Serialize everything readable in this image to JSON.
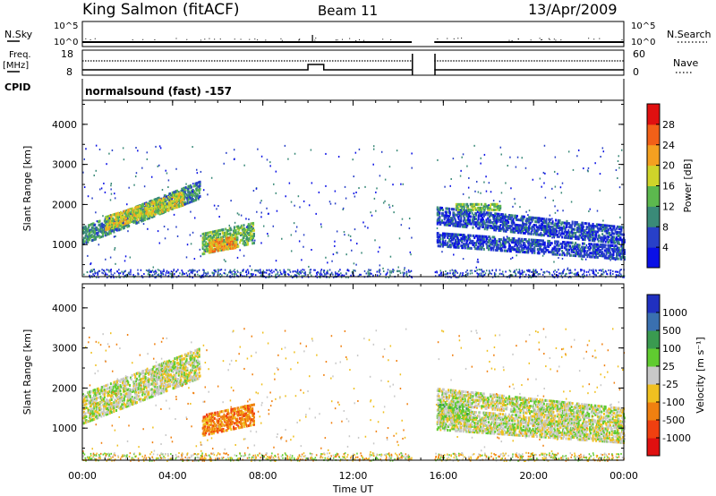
{
  "header": {
    "station": "King Salmon (fitACF)",
    "beam": "Beam 11",
    "date": "13/Apr/2009"
  },
  "top_panels": {
    "nsky_label": "N.Sky",
    "nsearch_label": "N.Search",
    "freq_label_1": "Freq.",
    "freq_label_2": "[MHz]",
    "nave_label": "Nave",
    "cpid_label": "CPID",
    "cpid_value": "normalsound (fast) -157",
    "nsky_ticks": [
      "10^5",
      "10^0"
    ],
    "nsearch_ticks": [
      "10^5",
      "10^0"
    ],
    "freq_ticks": [
      "18",
      "8"
    ],
    "nave_ticks": [
      "60",
      "0"
    ]
  },
  "chart_data": [
    {
      "type": "heatmap",
      "name": "power",
      "ylabel": "Slant Range [km]",
      "xlabel": "",
      "ylim": [
        200,
        4600
      ],
      "xlim_hours": [
        0,
        24
      ],
      "yticks": [
        "1000",
        "2000",
        "3000",
        "4000"
      ],
      "xticks": [
        "00:00",
        "04:00",
        "08:00",
        "12:00",
        "16:00",
        "20:00",
        "00:00"
      ],
      "colorbar": {
        "label": "Power [dB]",
        "ticks": [
          "4",
          "8",
          "12",
          "16",
          "20",
          "24",
          "28"
        ],
        "colors": [
          "#0a10e6",
          "#2840c8",
          "#3a8a78",
          "#5cb84e",
          "#cfd42a",
          "#f4a020",
          "#f26018",
          "#e01010"
        ]
      },
      "data_gap_hours": [
        14.6,
        15.6
      ],
      "regions": [
        {
          "t0": 0.0,
          "t1": 5.2,
          "r0": 1050,
          "r1": 1500,
          "r_slope": 220,
          "level": 2
        },
        {
          "t0": 1.0,
          "t1": 4.5,
          "r0": 1400,
          "r1": 1750,
          "r_slope": 180,
          "level": 4
        },
        {
          "t0": 5.3,
          "t1": 7.6,
          "r0": 800,
          "r1": 1300,
          "r_slope": 120,
          "level": 3
        },
        {
          "t0": 5.6,
          "t1": 6.8,
          "r0": 850,
          "r1": 1150,
          "r_slope": 90,
          "level": 5
        },
        {
          "t0": 15.7,
          "t1": 24.0,
          "r0": 1000,
          "r1": 1350,
          "r_slope": -40,
          "level": 1
        },
        {
          "t0": 15.7,
          "t1": 24.0,
          "r0": 1550,
          "r1": 2000,
          "r_slope": -60,
          "level": 1
        },
        {
          "t0": 16.5,
          "t1": 18.5,
          "r0": 1900,
          "r1": 2050,
          "r_slope": 0,
          "level": 3
        }
      ]
    },
    {
      "type": "heatmap",
      "name": "velocity",
      "ylabel": "Slant Range [km]",
      "xlabel": "Time UT",
      "ylim": [
        200,
        4600
      ],
      "xlim_hours": [
        0,
        24
      ],
      "yticks": [
        "1000",
        "2000",
        "3000",
        "4000"
      ],
      "xticks": [
        "00:00",
        "04:00",
        "08:00",
        "12:00",
        "16:00",
        "20:00",
        "00:00"
      ],
      "colorbar": {
        "label": "Velocity [m s⁻¹]",
        "ticks": [
          "1000",
          "500",
          "100",
          "25",
          "-25",
          "-100",
          "-500",
          "-1000"
        ],
        "colors": [
          "#2030c0",
          "#3a70b0",
          "#3a9a50",
          "#60cc30",
          "#c8c8c8",
          "#f0c020",
          "#f08010",
          "#f04010",
          "#e01010"
        ]
      },
      "data_gap_hours": [
        14.6,
        15.6
      ],
      "regions": [
        {
          "t0": 0.0,
          "t1": 5.2,
          "r0": 1150,
          "r1": 1900,
          "r_slope": 220,
          "level": 4
        },
        {
          "t0": 5.3,
          "t1": 7.6,
          "r0": 850,
          "r1": 1350,
          "r_slope": 120,
          "level": 6
        },
        {
          "t0": 15.7,
          "t1": 17.2,
          "r0": 1250,
          "r1": 1650,
          "r_slope": 0,
          "level": 3
        },
        {
          "t0": 15.7,
          "t1": 24.0,
          "r0": 1000,
          "r1": 1500,
          "r_slope": -40,
          "level": 4
        },
        {
          "t0": 15.7,
          "t1": 24.0,
          "r0": 1650,
          "r1": 2050,
          "r_slope": -60,
          "level": 4
        }
      ]
    }
  ]
}
